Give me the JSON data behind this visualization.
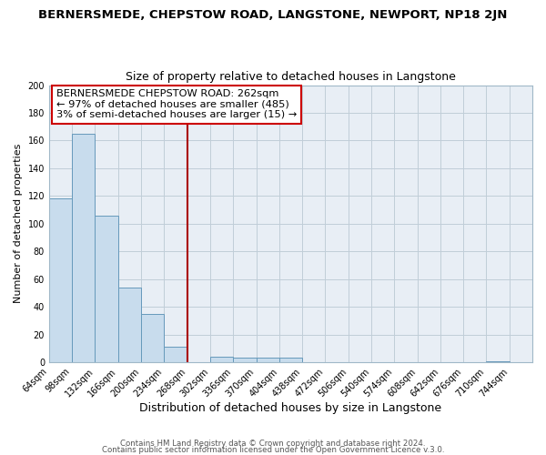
{
  "title": "BERNERSMEDE, CHEPSTOW ROAD, LANGSTONE, NEWPORT, NP18 2JN",
  "subtitle": "Size of property relative to detached houses in Langstone",
  "xlabel": "Distribution of detached houses by size in Langstone",
  "ylabel": "Number of detached properties",
  "bin_labels": [
    "64sqm",
    "98sqm",
    "132sqm",
    "166sqm",
    "200sqm",
    "234sqm",
    "268sqm",
    "302sqm",
    "336sqm",
    "370sqm",
    "404sqm",
    "438sqm",
    "472sqm",
    "506sqm",
    "540sqm",
    "574sqm",
    "608sqm",
    "642sqm",
    "676sqm",
    "710sqm",
    "744sqm"
  ],
  "bar_values": [
    118,
    165,
    106,
    54,
    35,
    11,
    0,
    4,
    3,
    3,
    3,
    0,
    0,
    0,
    0,
    0,
    0,
    0,
    0,
    1,
    0
  ],
  "bar_color": "#c8dced",
  "bar_edge_color": "#6699bb",
  "vline_x": 6,
  "vline_color": "#aa0000",
  "annotation_title": "BERNERSMEDE CHEPSTOW ROAD: 262sqm",
  "annotation_line1": "← 97% of detached houses are smaller (485)",
  "annotation_line2": "3% of semi-detached houses are larger (15) →",
  "annotation_box_color": "#ffffff",
  "annotation_box_edge": "#cc0000",
  "ylim": [
    0,
    200
  ],
  "yticks": [
    0,
    20,
    40,
    60,
    80,
    100,
    120,
    140,
    160,
    180,
    200
  ],
  "footer1": "Contains HM Land Registry data © Crown copyright and database right 2024.",
  "footer2": "Contains public sector information licensed under the Open Government Licence v.3.0.",
  "bg_color": "#ffffff",
  "plot_bg_color": "#e8eef5"
}
